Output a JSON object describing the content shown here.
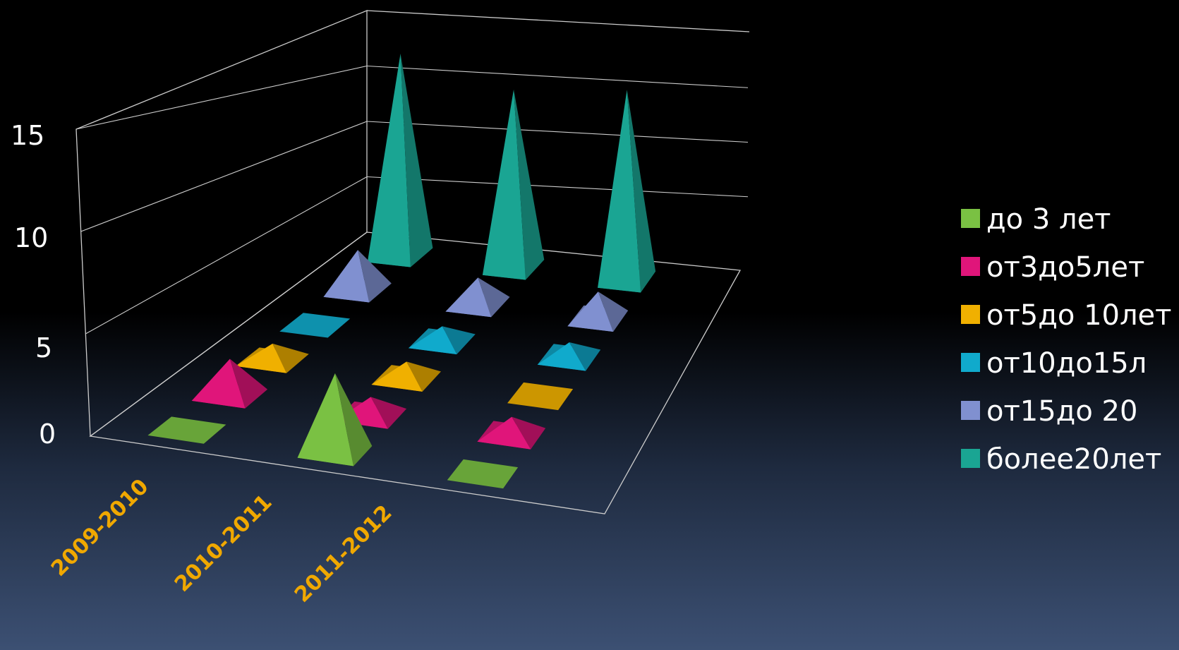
{
  "chart_data": {
    "type": "bar",
    "style": "3d-pyramid",
    "categories": [
      "2009-2010",
      "2010-2011",
      "2011-2012"
    ],
    "ylim": [
      0,
      20
    ],
    "yticks": [
      "0",
      "5",
      "10",
      "15"
    ],
    "legend_position": "right",
    "grid": true,
    "series": [
      {
        "name": "до 3 лет",
        "color": "#7ac143",
        "values": [
          0,
          4,
          0
        ]
      },
      {
        "name": "от3до5лет",
        "color": "#e0157a",
        "values": [
          2,
          1,
          1
        ]
      },
      {
        "name": "от5до 10лет",
        "color": "#f0b000",
        "values": [
          1,
          1,
          0
        ]
      },
      {
        "name": "от10до15л",
        "color": "#10aacc",
        "values": [
          0,
          1,
          1
        ]
      },
      {
        "name": "от15до 20",
        "color": "#8090d0",
        "values": [
          3,
          2,
          2
        ]
      },
      {
        "name": "более20лет",
        "color": "#1aa593",
        "values": [
          17,
          15,
          16
        ]
      }
    ]
  }
}
